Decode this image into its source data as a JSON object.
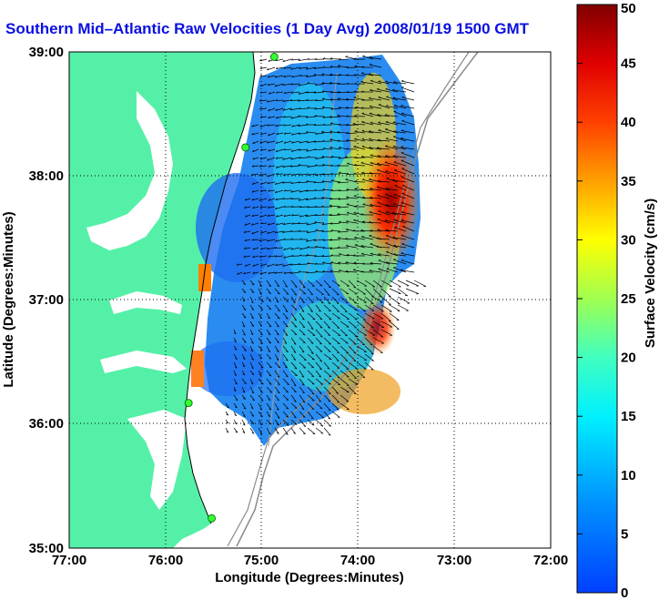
{
  "map": {
    "title": "Southern Mid–Atlantic Raw Velocities (1 Day Avg) 2008/01/19 1500 GMT",
    "xlabel": "Longitude (Degrees:Minutes)",
    "ylabel": "Latitude (Degrees:Minutes)",
    "x_ticks": [
      "77:00",
      "76:00",
      "75:00",
      "74:00",
      "73:00",
      "72:00"
    ],
    "y_ticks": [
      "39:00",
      "38:00",
      "37:00",
      "36:00",
      "35:00"
    ],
    "lon_range": [
      -77,
      -72
    ],
    "lat_range": [
      35,
      39
    ],
    "land_color": "#55f0a8",
    "grid": "dotted"
  },
  "colorbar": {
    "label": "Surface Velocity (cm/s)",
    "ticks": [
      "50",
      "45",
      "40",
      "35",
      "30",
      "25",
      "20",
      "15",
      "10",
      "5",
      "0"
    ],
    "range": [
      0,
      50
    ],
    "colormap": "jet"
  },
  "stations": [
    {
      "lon": -74.87,
      "lat": 38.96
    },
    {
      "lon": -75.17,
      "lat": 38.23
    },
    {
      "lon": -75.76,
      "lat": 36.17
    },
    {
      "lon": -75.52,
      "lat": 35.24
    }
  ]
}
